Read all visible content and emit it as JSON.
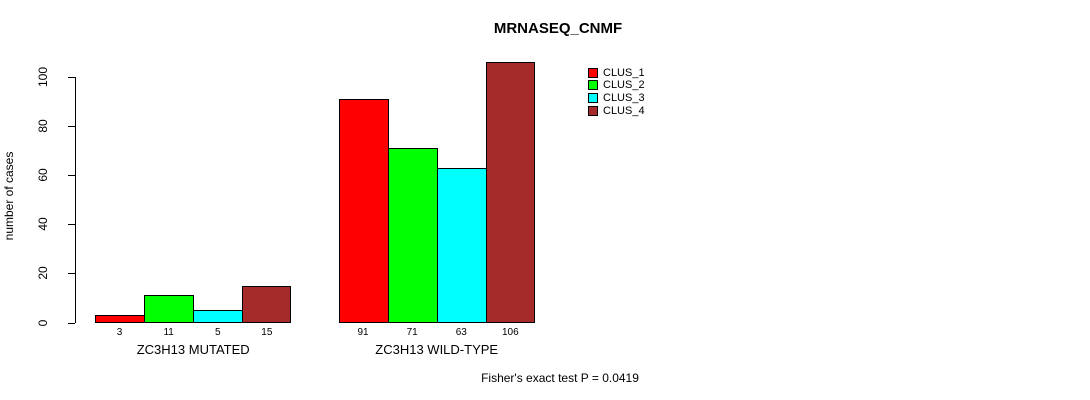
{
  "chart_data": {
    "type": "bar",
    "title": "MRNASEQ_CNMF",
    "ylabel": "number of cases",
    "categories": [
      "ZC3H13 MUTATED",
      "ZC3H13 WILD-TYPE"
    ],
    "series": [
      {
        "name": "CLUS_1",
        "color": "#FF0000",
        "values": [
          3,
          91
        ]
      },
      {
        "name": "CLUS_2",
        "color": "#00FF00",
        "values": [
          11,
          71
        ]
      },
      {
        "name": "CLUS_3",
        "color": "#00FFFF",
        "values": [
          5,
          63
        ]
      },
      {
        "name": "CLUS_4",
        "color": "#A52A2A",
        "values": [
          15,
          106
        ]
      }
    ],
    "bar_value_labels": [
      [
        "3",
        "11",
        "5",
        "15"
      ],
      [
        "91",
        "71",
        "63",
        "106"
      ]
    ],
    "yticks": [
      "0",
      "20",
      "40",
      "60",
      "80",
      "100"
    ],
    "ylim": [
      0,
      110
    ],
    "grid": false,
    "legend_position": "top-right",
    "annotation": "Fisher's exact test P = 0.0419"
  },
  "colors": {
    "axis": "#000000",
    "text": "#000000",
    "background": "#FFFFFF"
  }
}
